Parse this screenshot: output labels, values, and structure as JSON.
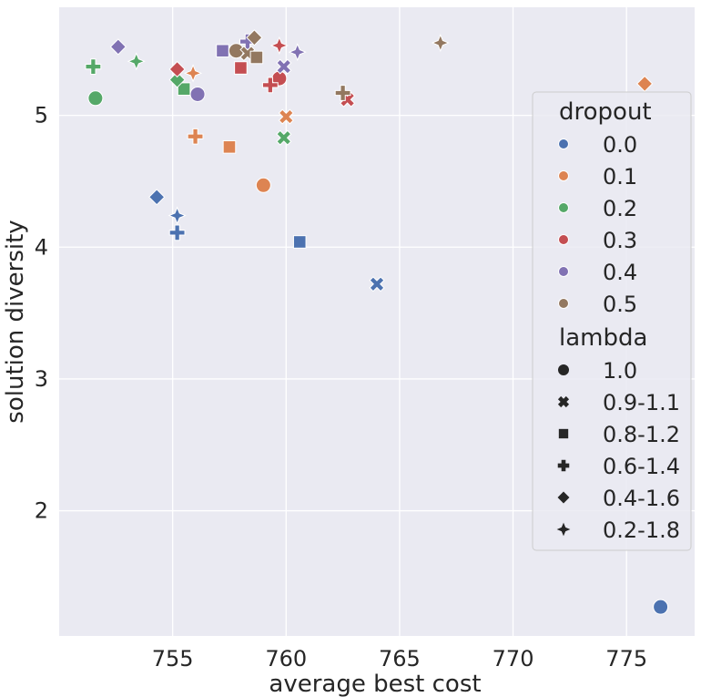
{
  "chart_data": {
    "type": "scatter",
    "title": "",
    "xlabel": "average best cost",
    "ylabel": "solution diversity",
    "xlim": [
      750.0,
      778.0
    ],
    "ylim": [
      1.05,
      5.82
    ],
    "xticks": [
      755,
      760,
      765,
      770,
      775
    ],
    "yticks": [
      2,
      3,
      4,
      5
    ],
    "xtick_labels": [
      "755",
      "760",
      "765",
      "770",
      "775"
    ],
    "ytick_labels": [
      "2",
      "3",
      "4",
      "5"
    ],
    "grid": true,
    "legend_position": "right",
    "hue": {
      "title": "dropout",
      "levels": [
        "0.0",
        "0.1",
        "0.2",
        "0.3",
        "0.4",
        "0.5"
      ],
      "colors": [
        "#4c72b0",
        "#dd8452",
        "#55a868",
        "#c44e52",
        "#8172b3",
        "#937860"
      ]
    },
    "style": {
      "title": "lambda",
      "levels": [
        "1.0",
        "0.9-1.1",
        "0.8-1.2",
        "0.6-1.4",
        "0.4-1.6",
        "0.2-1.8"
      ],
      "markers": [
        "circle",
        "x",
        "square",
        "plus",
        "diamond",
        "star4"
      ]
    },
    "points": [
      {
        "x": 776.5,
        "y": 1.27,
        "dropout": "0.0",
        "lambda": "1.0"
      },
      {
        "x": 764.0,
        "y": 3.72,
        "dropout": "0.0",
        "lambda": "0.9-1.1"
      },
      {
        "x": 760.6,
        "y": 4.04,
        "dropout": "0.0",
        "lambda": "0.8-1.2"
      },
      {
        "x": 755.2,
        "y": 4.11,
        "dropout": "0.0",
        "lambda": "0.6-1.4"
      },
      {
        "x": 754.3,
        "y": 4.38,
        "dropout": "0.0",
        "lambda": "0.4-1.6"
      },
      {
        "x": 755.2,
        "y": 4.24,
        "dropout": "0.0",
        "lambda": "0.2-1.8"
      },
      {
        "x": 759.0,
        "y": 4.47,
        "dropout": "0.1",
        "lambda": "1.0"
      },
      {
        "x": 760.0,
        "y": 4.99,
        "dropout": "0.1",
        "lambda": "0.9-1.1"
      },
      {
        "x": 757.5,
        "y": 4.76,
        "dropout": "0.1",
        "lambda": "0.8-1.2"
      },
      {
        "x": 756.0,
        "y": 4.84,
        "dropout": "0.1",
        "lambda": "0.6-1.4"
      },
      {
        "x": 775.8,
        "y": 5.24,
        "dropout": "0.1",
        "lambda": "0.4-1.6"
      },
      {
        "x": 755.9,
        "y": 5.32,
        "dropout": "0.1",
        "lambda": "0.2-1.8"
      },
      {
        "x": 751.6,
        "y": 5.13,
        "dropout": "0.2",
        "lambda": "1.0"
      },
      {
        "x": 759.9,
        "y": 4.83,
        "dropout": "0.2",
        "lambda": "0.9-1.1"
      },
      {
        "x": 755.5,
        "y": 5.2,
        "dropout": "0.2",
        "lambda": "0.8-1.2"
      },
      {
        "x": 751.5,
        "y": 5.37,
        "dropout": "0.2",
        "lambda": "0.6-1.4"
      },
      {
        "x": 755.2,
        "y": 5.27,
        "dropout": "0.2",
        "lambda": "0.4-1.6"
      },
      {
        "x": 753.4,
        "y": 5.41,
        "dropout": "0.2",
        "lambda": "0.2-1.8"
      },
      {
        "x": 759.7,
        "y": 5.28,
        "dropout": "0.3",
        "lambda": "1.0"
      },
      {
        "x": 762.7,
        "y": 5.12,
        "dropout": "0.3",
        "lambda": "0.9-1.1"
      },
      {
        "x": 758.0,
        "y": 5.36,
        "dropout": "0.3",
        "lambda": "0.8-1.2"
      },
      {
        "x": 759.3,
        "y": 5.23,
        "dropout": "0.3",
        "lambda": "0.6-1.4"
      },
      {
        "x": 755.2,
        "y": 5.35,
        "dropout": "0.3",
        "lambda": "0.4-1.6"
      },
      {
        "x": 759.7,
        "y": 5.53,
        "dropout": "0.3",
        "lambda": "0.2-1.8"
      },
      {
        "x": 756.1,
        "y": 5.16,
        "dropout": "0.4",
        "lambda": "1.0"
      },
      {
        "x": 759.9,
        "y": 5.37,
        "dropout": "0.4",
        "lambda": "0.9-1.1"
      },
      {
        "x": 757.2,
        "y": 5.49,
        "dropout": "0.4",
        "lambda": "0.8-1.2"
      },
      {
        "x": 758.3,
        "y": 5.56,
        "dropout": "0.4",
        "lambda": "0.6-1.4"
      },
      {
        "x": 752.6,
        "y": 5.52,
        "dropout": "0.4",
        "lambda": "0.4-1.6"
      },
      {
        "x": 760.5,
        "y": 5.48,
        "dropout": "0.4",
        "lambda": "0.2-1.8"
      },
      {
        "x": 757.8,
        "y": 5.49,
        "dropout": "0.5",
        "lambda": "1.0"
      },
      {
        "x": 758.3,
        "y": 5.47,
        "dropout": "0.5",
        "lambda": "0.9-1.1"
      },
      {
        "x": 758.7,
        "y": 5.44,
        "dropout": "0.5",
        "lambda": "0.8-1.2"
      },
      {
        "x": 762.5,
        "y": 5.17,
        "dropout": "0.5",
        "lambda": "0.6-1.4"
      },
      {
        "x": 758.6,
        "y": 5.59,
        "dropout": "0.5",
        "lambda": "0.4-1.6"
      },
      {
        "x": 766.8,
        "y": 5.55,
        "dropout": "0.5",
        "lambda": "0.2-1.8"
      }
    ]
  }
}
